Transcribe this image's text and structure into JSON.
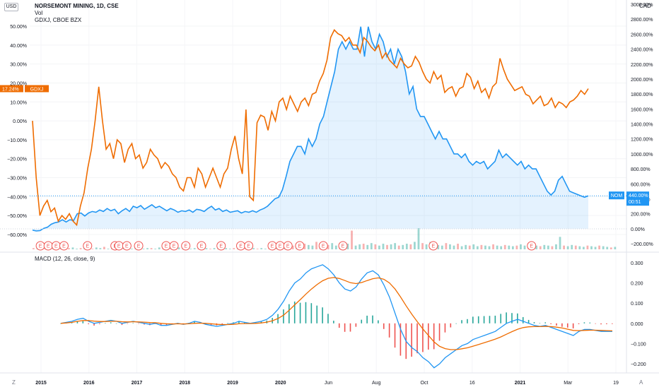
{
  "header": {
    "title": "NORSEMONT MINING, 1D, CSE",
    "volume_label": "Vol",
    "compare_label": "GDXJ, CBOE BZX",
    "macd_label": "MACD (12, 26, close, 9)",
    "currency_left": "USD",
    "currency_right": "CAD",
    "scale_auto": "A",
    "scale_zoom": "Z"
  },
  "colors": {
    "nom": "#2196f3",
    "gdxj": "#ef6c00",
    "macd_line": "#2196f3",
    "signal_line": "#ef6c00",
    "hist_up": "#26a69a",
    "hist_down": "#ef5350",
    "earnings": "#ef5350"
  },
  "chart_data": {
    "type": "line",
    "x_ticks": [
      "2015",
      "2016",
      "2017",
      "2018",
      "2019",
      "2020",
      "Jun",
      "Aug",
      "Oct",
      "16",
      "2021",
      "Mar",
      "19"
    ],
    "left_axis": {
      "unit": "%",
      "ticks": [
        "50.00%",
        "40.00%",
        "30.00%",
        "20.00%",
        "10.00%",
        "0.00%",
        "−10.00%",
        "−20.00%",
        "−30.00%",
        "−40.00%",
        "−50.00%",
        "−60.00%"
      ]
    },
    "right_axis": {
      "unit": "%",
      "ticks": [
        "3000.00%",
        "2800.00%",
        "2600.00%",
        "2400.00%",
        "2200.00%",
        "2000.00%",
        "1800.00%",
        "1600.00%",
        "1400.00%",
        "1200.00%",
        "1000.00%",
        "800.00%",
        "600.00%",
        "400.00%",
        "200.00%",
        "0.00%",
        "−200.00%"
      ]
    },
    "macd_axis": {
      "ticks": [
        "0.300",
        "0.200",
        "0.100",
        "0.000",
        "−0.100",
        "−0.200"
      ]
    },
    "series": [
      {
        "name": "NOM",
        "axis": "right",
        "last_label": "440.00%",
        "countdown": "00:51",
        "values": [
          -20,
          -30,
          -25,
          5,
          20,
          60,
          80,
          90,
          120,
          90,
          120,
          110,
          200,
          210,
          170,
          210,
          230,
          220,
          250,
          230,
          270,
          240,
          260,
          200,
          240,
          270,
          230,
          300,
          280,
          310,
          260,
          290,
          320,
          280,
          300,
          270,
          240,
          270,
          250,
          220,
          240,
          230,
          250,
          220,
          260,
          250,
          230,
          270,
          300,
          250,
          270,
          230,
          250,
          220,
          230,
          240,
          210,
          230,
          220,
          240,
          220,
          250,
          270,
          300,
          350,
          400,
          420,
          520,
          700,
          900,
          1000,
          1100,
          1100,
          1000,
          1200,
          1100,
          1200,
          1400,
          1500,
          1700,
          1900,
          2100,
          2400,
          2500,
          2400,
          2500,
          2400,
          2400,
          2700,
          2300,
          2700,
          2500,
          2400,
          2600,
          2500,
          2300,
          2400,
          2200,
          2400,
          2300,
          2100,
          1800,
          1900,
          1600,
          1500,
          1500,
          1400,
          1300,
          1200,
          1300,
          1200,
          1200,
          1100,
          1000,
          1000,
          950,
          1000,
          900,
          850,
          900,
          870,
          900,
          800,
          850,
          900,
          1050,
          950,
          1000,
          950,
          900,
          850,
          900,
          800,
          850,
          800,
          800,
          700,
          600,
          500,
          450,
          500,
          650,
          700,
          600,
          500,
          480,
          460,
          440,
          420,
          440
        ]
      },
      {
        "name": "GDXJ",
        "axis": "left",
        "last_label": "17.24%",
        "values": [
          0,
          -30,
          -50,
          -45,
          -42,
          -48,
          -46,
          -53,
          -50,
          -52,
          -49,
          -53,
          -55,
          -45,
          -38,
          -25,
          -15,
          0,
          18,
          0,
          -15,
          -12,
          -20,
          -10,
          -12,
          -22,
          -15,
          -12,
          -20,
          -18,
          -25,
          -22,
          -15,
          -18,
          -20,
          -25,
          -22,
          -24,
          -28,
          -30,
          -35,
          -37,
          -30,
          -30,
          -35,
          -25,
          -28,
          -35,
          -30,
          -25,
          -30,
          -35,
          -28,
          -25,
          -15,
          -8,
          -20,
          -28,
          6,
          -40,
          -42,
          -1,
          3,
          2,
          -5,
          5,
          0,
          10,
          12,
          6,
          13,
          9,
          5,
          10,
          12,
          8,
          14,
          15,
          21,
          25,
          32,
          44,
          48,
          46,
          45,
          42,
          44,
          40,
          40,
          36,
          44,
          42,
          39,
          37,
          40,
          33,
          36,
          32,
          30,
          28,
          33,
          30,
          28,
          29,
          34,
          31,
          26,
          22,
          20,
          26,
          22,
          24,
          15,
          17,
          18,
          13,
          17,
          18,
          25,
          23,
          17,
          21,
          15,
          17,
          12,
          18,
          20,
          33,
          27,
          22,
          19,
          16,
          17,
          18,
          14,
          13,
          9,
          11,
          13,
          8,
          9,
          12,
          7,
          10,
          9,
          7,
          10,
          11,
          13,
          16,
          14,
          17
        ]
      }
    ],
    "volume": [
      2,
      1,
      3,
      2,
      1,
      1,
      2,
      4,
      1,
      2,
      3,
      1,
      2,
      2,
      1,
      1,
      3,
      2,
      4,
      1,
      2,
      1,
      3,
      2,
      1,
      1,
      2,
      3,
      1,
      2,
      2,
      1,
      3,
      1,
      2,
      1,
      2,
      3,
      1,
      2,
      1,
      2,
      1,
      3,
      2,
      1,
      2,
      1,
      3,
      2,
      1,
      2,
      1,
      2,
      3,
      1,
      2,
      1,
      2,
      1,
      2,
      4,
      3,
      2,
      5,
      4,
      6,
      8,
      5,
      9,
      7,
      6,
      12,
      5,
      8,
      7,
      10,
      6,
      8,
      12,
      9,
      30,
      6,
      8,
      9,
      7,
      10,
      8,
      6,
      9,
      7,
      8,
      10,
      6,
      7,
      9,
      8,
      12,
      34,
      10,
      8,
      12,
      9,
      7,
      6,
      10,
      8,
      6,
      9,
      5,
      7,
      6,
      8,
      5,
      7,
      6,
      5,
      8,
      6,
      5,
      7,
      6,
      5,
      6,
      8,
      6,
      5,
      7,
      6,
      5,
      7,
      6,
      5,
      8,
      20,
      6,
      5,
      7,
      6,
      5,
      4,
      6,
      5,
      4,
      6,
      5,
      4,
      3,
      4
    ],
    "earnings_marker": "E",
    "earnings_index": [
      2,
      4,
      6,
      8,
      14,
      21,
      22,
      24,
      27,
      34,
      36,
      39,
      43,
      48,
      53,
      55,
      61,
      63,
      65,
      68,
      74,
      79,
      102,
      127
    ],
    "macd": [
      0.0,
      0.005,
      0.01,
      0.02,
      0.025,
      0.01,
      0.0,
      0.005,
      0.01,
      0.015,
      0.01,
      0.0,
      0.005,
      0.01,
      0.005,
      0.0,
      -0.005,
      0.0,
      -0.01,
      -0.01,
      -0.005,
      0.0,
      -0.005,
      0.0,
      0.01,
      0.005,
      -0.005,
      -0.01,
      -0.015,
      -0.01,
      -0.005,
      0.0,
      0.01,
      0.005,
      0.0,
      0.005,
      0.01,
      0.02,
      0.04,
      0.07,
      0.11,
      0.16,
      0.2,
      0.22,
      0.25,
      0.27,
      0.28,
      0.29,
      0.27,
      0.24,
      0.2,
      0.17,
      0.16,
      0.18,
      0.22,
      0.25,
      0.26,
      0.24,
      0.19,
      0.13,
      0.05,
      -0.03,
      -0.09,
      -0.12,
      -0.14,
      -0.17,
      -0.19,
      -0.22,
      -0.2,
      -0.17,
      -0.15,
      -0.13,
      -0.11,
      -0.1,
      -0.08,
      -0.07,
      -0.06,
      -0.05,
      -0.04,
      -0.02,
      0.0,
      0.01,
      0.02,
      0.01,
      0.0,
      -0.01,
      -0.015,
      -0.01,
      -0.02,
      -0.03,
      -0.04,
      -0.05,
      -0.06,
      -0.04,
      -0.03,
      -0.03,
      -0.035,
      -0.04,
      -0.04,
      -0.04
    ],
    "signal": [
      0.0,
      0.002,
      0.005,
      0.01,
      0.014,
      0.014,
      0.011,
      0.009,
      0.009,
      0.01,
      0.01,
      0.008,
      0.007,
      0.008,
      0.007,
      0.006,
      0.004,
      0.003,
      0.0,
      -0.002,
      -0.003,
      -0.002,
      -0.003,
      -0.002,
      0.0,
      0.001,
      0.0,
      -0.002,
      -0.005,
      -0.006,
      -0.006,
      -0.005,
      -0.002,
      -0.001,
      -0.001,
      0.0,
      0.002,
      0.006,
      0.013,
      0.024,
      0.041,
      0.065,
      0.092,
      0.118,
      0.145,
      0.17,
      0.192,
      0.211,
      0.223,
      0.227,
      0.222,
      0.212,
      0.201,
      0.197,
      0.202,
      0.212,
      0.221,
      0.225,
      0.218,
      0.2,
      0.17,
      0.13,
      0.086,
      0.045,
      0.008,
      -0.028,
      -0.06,
      -0.092,
      -0.114,
      -0.125,
      -0.13,
      -0.13,
      -0.126,
      -0.121,
      -0.113,
      -0.105,
      -0.096,
      -0.087,
      -0.078,
      -0.067,
      -0.054,
      -0.041,
      -0.029,
      -0.021,
      -0.017,
      -0.016,
      -0.016,
      -0.015,
      -0.016,
      -0.019,
      -0.023,
      -0.029,
      -0.035,
      -0.036,
      -0.035,
      -0.034,
      -0.034,
      -0.035,
      -0.036,
      -0.037
    ]
  }
}
